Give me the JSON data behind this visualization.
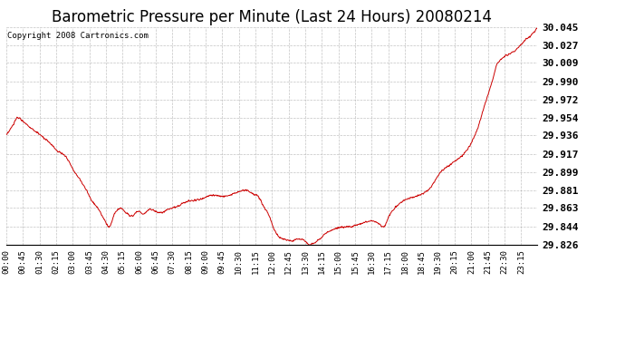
{
  "title": "Barometric Pressure per Minute (Last 24 Hours) 20080214",
  "copyright_text": "Copyright 2008 Cartronics.com",
  "line_color": "#cc0000",
  "background_color": "#ffffff",
  "plot_bg_color": "#ffffff",
  "grid_color": "#aaaaaa",
  "yticks": [
    29.826,
    29.844,
    29.863,
    29.881,
    29.899,
    29.917,
    29.936,
    29.954,
    29.972,
    29.99,
    30.009,
    30.027,
    30.045
  ],
  "ylim": [
    29.826,
    30.045
  ],
  "xtick_labels": [
    "00:00",
    "00:45",
    "01:30",
    "02:15",
    "03:00",
    "03:45",
    "04:30",
    "05:15",
    "06:00",
    "06:45",
    "07:30",
    "08:15",
    "09:00",
    "09:45",
    "10:30",
    "11:15",
    "12:00",
    "12:45",
    "13:30",
    "14:15",
    "15:00",
    "15:45",
    "16:30",
    "17:15",
    "18:00",
    "18:45",
    "19:30",
    "20:15",
    "21:00",
    "21:45",
    "22:30",
    "23:15"
  ],
  "title_fontsize": 12,
  "copyright_fontsize": 6.5,
  "tick_fontsize": 6.5,
  "ytick_fontsize": 8,
  "keypoints_h": [
    0,
    0.25,
    0.5,
    0.75,
    1.0,
    1.5,
    2.0,
    2.25,
    2.5,
    3.0,
    3.5,
    3.75,
    4.0,
    4.25,
    4.5,
    4.75,
    5.0,
    5.25,
    5.5,
    5.75,
    6.0,
    6.25,
    6.5,
    6.75,
    7.0,
    7.25,
    7.5,
    7.75,
    8.0,
    8.5,
    9.0,
    9.5,
    10.0,
    10.25,
    10.5,
    10.75,
    11.0,
    11.25,
    11.5,
    11.75,
    12.0,
    12.25,
    12.5,
    12.75,
    13.0,
    13.25,
    13.5,
    13.75,
    14.0,
    14.25,
    14.5,
    14.75,
    15.0,
    15.5,
    16.0,
    16.25,
    16.5,
    16.75,
    17.0,
    17.5,
    18.0,
    18.25,
    18.5,
    18.75,
    19.0,
    19.5,
    20.0,
    20.5,
    21.0,
    21.25,
    21.5,
    22.0,
    22.25,
    22.5,
    22.75,
    23.0,
    23.25
  ],
  "keypoints_p": [
    29.936,
    29.945,
    29.954,
    29.95,
    29.945,
    29.936,
    29.926,
    29.92,
    29.917,
    29.899,
    29.881,
    29.87,
    29.863,
    29.853,
    29.844,
    29.858,
    29.863,
    29.858,
    29.855,
    29.86,
    29.857,
    29.862,
    29.86,
    29.858,
    29.861,
    29.863,
    29.865,
    29.868,
    29.87,
    29.872,
    29.876,
    29.875,
    29.878,
    29.88,
    29.881,
    29.878,
    29.875,
    29.865,
    29.855,
    29.84,
    29.833,
    29.831,
    29.83,
    29.832,
    29.831,
    29.826,
    29.828,
    29.833,
    29.838,
    29.841,
    29.843,
    29.844,
    29.844,
    29.847,
    29.85,
    29.848,
    29.844,
    29.855,
    29.863,
    29.872,
    29.875,
    29.878,
    29.882,
    29.89,
    29.899,
    29.908,
    29.917,
    29.936,
    29.972,
    29.99,
    30.009,
    30.018,
    30.021,
    30.027,
    30.033,
    30.038,
    30.045
  ]
}
